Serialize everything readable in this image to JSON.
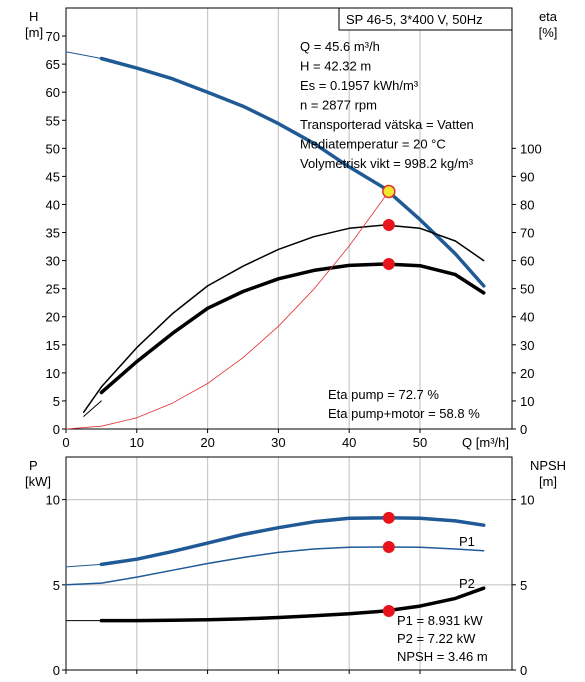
{
  "chart_data": [
    {
      "type": "line",
      "panel": "top",
      "title": "SP 46-5, 3*400 V, 50Hz",
      "y_left_title": [
        "H",
        "[m]"
      ],
      "y_right_title": [
        "eta",
        "[%]"
      ],
      "x_title": "Q [m³/h]",
      "xlim": [
        0,
        63
      ],
      "ylim_left": [
        0,
        75
      ],
      "ylim_right": [
        0,
        150
      ],
      "x_ticks": [
        0,
        10,
        20,
        30,
        40,
        50
      ],
      "y_left_ticks": [
        0,
        5,
        10,
        15,
        20,
        25,
        30,
        35,
        40,
        45,
        50,
        55,
        60,
        65,
        70
      ],
      "y_right_ticks": [
        0,
        10,
        20,
        30,
        40,
        50,
        60,
        70,
        80,
        90,
        100
      ],
      "grid": true,
      "info_lines": [
        "Q = 45.6 m³/h",
        "H = 42.32 m",
        "Es = 0.1957 kWh/m³",
        "n = 2877 rpm",
        "Transporterad vätska = Vatten",
        "Mediatemperatur = 20 °C",
        "Volymetrisk vikt = 998.2 kg/m³"
      ],
      "eta_lines": [
        "Eta pump = 72.7 %",
        "Eta pump+motor = 58.8 %"
      ],
      "series": [
        {
          "role": "H",
          "axis": "left",
          "color": "#1f5a96",
          "width": 3.5,
          "x": [
            5,
            10,
            15,
            20,
            25,
            30,
            35,
            40,
            45,
            50,
            55,
            59
          ],
          "y": [
            66,
            64.3,
            62.4,
            60,
            57.5,
            54.4,
            50.9,
            46.7,
            42.9,
            37.3,
            31.2,
            25.5
          ]
        },
        {
          "role": "H-extension",
          "axis": "left",
          "color": "#1f5a96",
          "width": 1,
          "x": [
            0,
            5
          ],
          "y": [
            67.2,
            66
          ]
        },
        {
          "role": "eta-pump",
          "axis": "right",
          "color": "#000000",
          "width": 1.5,
          "x": [
            2.5,
            5,
            10,
            15,
            20,
            25,
            30,
            35,
            40,
            45,
            50,
            55,
            59
          ],
          "y": [
            6,
            15,
            29,
            41,
            51,
            58,
            64,
            68.5,
            71.5,
            72.7,
            71.5,
            67,
            60
          ]
        },
        {
          "role": "eta-pump+motor",
          "axis": "right",
          "color": "#000000",
          "width": 3.5,
          "x": [
            5,
            10,
            15,
            20,
            25,
            30,
            35,
            40,
            45,
            50,
            55,
            59
          ],
          "y": [
            13,
            24,
            34,
            43,
            49,
            53.5,
            56.5,
            58.3,
            58.8,
            58.2,
            55,
            48.5
          ]
        },
        {
          "role": "eta-pump+motor-extension",
          "axis": "right",
          "color": "#000000",
          "width": 1,
          "x": [
            2.5,
            5
          ],
          "y": [
            4.5,
            10
          ]
        },
        {
          "role": "system-curve",
          "axis": "left",
          "color": "#e03030",
          "width": 0.8,
          "x": [
            0,
            5,
            10,
            15,
            20,
            25,
            30,
            35,
            40,
            45.6
          ],
          "y": [
            0,
            0.5,
            2,
            4.6,
            8.1,
            12.7,
            18.3,
            24.9,
            32.6,
            42.32
          ]
        }
      ],
      "points": [
        {
          "role": "operating-point",
          "x": 45.6,
          "y": 42.32,
          "axis": "left",
          "fill": "#f2e62e",
          "stroke": "#e03030"
        },
        {
          "role": "eta-pump-point",
          "x": 45.6,
          "y": 72.7,
          "axis": "right",
          "fill": "#e8141c"
        },
        {
          "role": "eta-pump+motor-point",
          "x": 45.6,
          "y": 58.8,
          "axis": "right",
          "fill": "#e8141c"
        }
      ]
    },
    {
      "type": "line",
      "panel": "bottom",
      "y_left_title": [
        "P",
        "[kW]"
      ],
      "y_right_title": [
        "NPSH",
        "[m]"
      ],
      "xlim": [
        0,
        63
      ],
      "ylim_left": [
        0,
        12.5
      ],
      "ylim_right": [
        0,
        12.5
      ],
      "x_ticks": [
        0,
        10,
        20,
        30,
        40,
        50
      ],
      "y_left_ticks": [
        0,
        5,
        10
      ],
      "y_right_ticks": [
        0,
        5,
        10
      ],
      "grid": true,
      "series_labels": [
        "P1",
        "P2"
      ],
      "info_lines": [
        "P1 = 8.931 kW",
        "P2 = 7.22 kW",
        "NPSH = 3.46 m"
      ],
      "series": [
        {
          "role": "P1",
          "name": "P1",
          "axis": "left",
          "color": "#1f5a96",
          "width": 3.5,
          "x": [
            5,
            10,
            15,
            20,
            25,
            30,
            35,
            40,
            45,
            50,
            55,
            59
          ],
          "y": [
            6.2,
            6.5,
            6.95,
            7.45,
            7.95,
            8.35,
            8.7,
            8.9,
            8.93,
            8.9,
            8.75,
            8.5
          ]
        },
        {
          "role": "P1-extension",
          "axis": "left",
          "color": "#1f5a96",
          "width": 1,
          "x": [
            0,
            5
          ],
          "y": [
            6.05,
            6.2
          ]
        },
        {
          "role": "P2",
          "name": "P2",
          "axis": "left",
          "color": "#1f5a96",
          "width": 1.5,
          "x": [
            0,
            5,
            10,
            15,
            20,
            25,
            30,
            35,
            40,
            45,
            50,
            55,
            59
          ],
          "y": [
            5,
            5.1,
            5.45,
            5.85,
            6.25,
            6.6,
            6.9,
            7.1,
            7.2,
            7.22,
            7.2,
            7.1,
            7.0
          ]
        },
        {
          "role": "NPSH",
          "axis": "right",
          "color": "#000000",
          "width": 3.5,
          "x": [
            5,
            10,
            15,
            20,
            25,
            30,
            35,
            40,
            45,
            50,
            55,
            59
          ],
          "y": [
            2.9,
            2.9,
            2.92,
            2.95,
            3.0,
            3.08,
            3.18,
            3.3,
            3.46,
            3.75,
            4.2,
            4.8
          ]
        },
        {
          "role": "NPSH-extension",
          "axis": "right",
          "color": "#000000",
          "width": 1,
          "x": [
            0,
            5
          ],
          "y": [
            2.9,
            2.9
          ]
        }
      ],
      "points": [
        {
          "role": "P1-point",
          "x": 45.6,
          "y": 8.931,
          "axis": "left",
          "fill": "#e8141c"
        },
        {
          "role": "P2-point",
          "x": 45.6,
          "y": 7.22,
          "axis": "left",
          "fill": "#e8141c"
        },
        {
          "role": "NPSH-point",
          "x": 45.6,
          "y": 3.46,
          "axis": "right",
          "fill": "#e8141c"
        }
      ]
    }
  ]
}
